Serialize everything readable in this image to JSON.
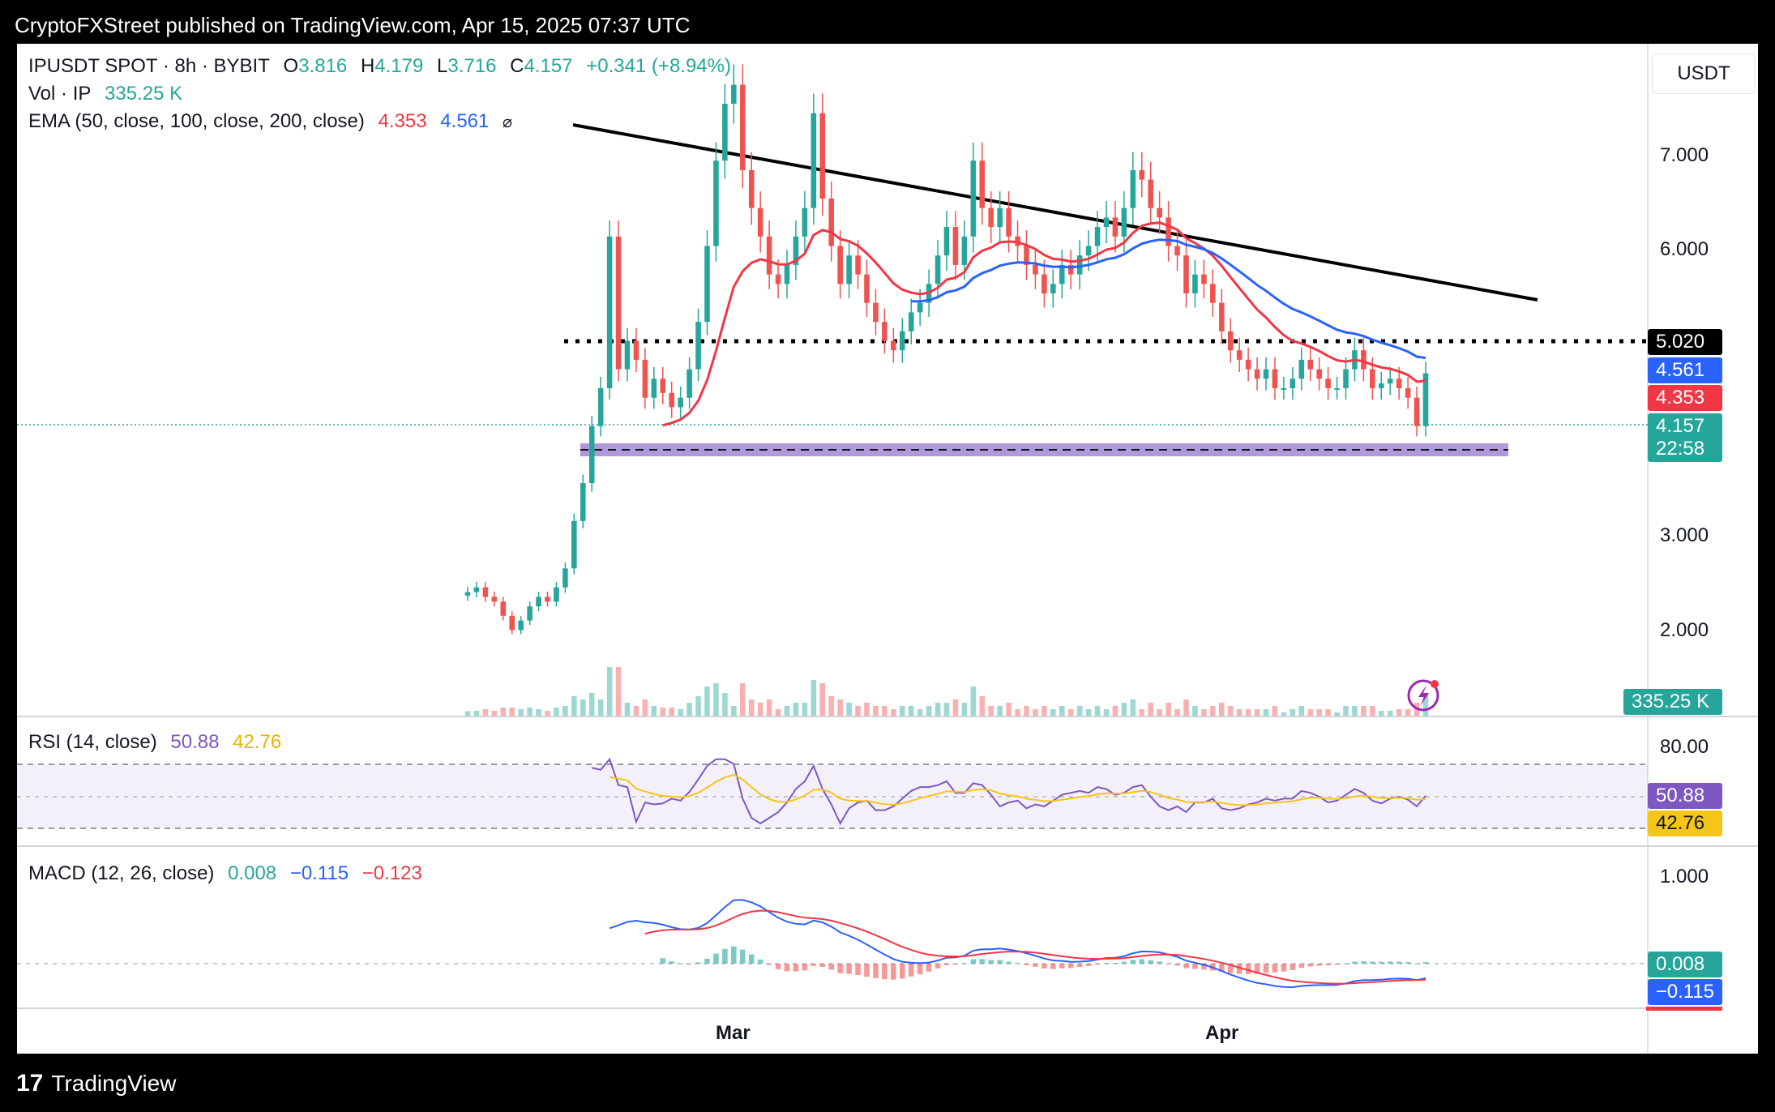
{
  "header": {
    "publisher": "CryptoFXStreet published on TradingView.com, Apr 15, 2025 07:37 UTC"
  },
  "footer": {
    "brand": "TradingView"
  },
  "legend": {
    "symbol": "IPUSDT SPOT · 8h · BYBIT",
    "o_label": "O",
    "o_value": "3.816",
    "h_label": "H",
    "h_value": "4.179",
    "l_label": "L",
    "l_value": "3.716",
    "c_label": "C",
    "c_value": "4.157",
    "change": "+0.341 (+8.94%)",
    "vol_label": "Vol · IP",
    "vol_value": "335.25 K",
    "ema_label": "EMA (50, close, 100, close, 200, close)",
    "ema50": "4.353",
    "ema100": "4.561",
    "ema_extra": "⌀"
  },
  "rsi_legend": {
    "label": "RSI (14, close)",
    "rsi": "50.88",
    "ma": "42.76"
  },
  "macd_legend": {
    "label": "MACD (12, 26, close)",
    "hist": "0.008",
    "macd": "−0.115",
    "signal": "−0.123"
  },
  "axis": {
    "currency_button": "USDT",
    "price_ticks": [
      "7.000",
      "6.000",
      "2.000",
      "3.000"
    ],
    "rsi_tick": "80.00",
    "macd_tick": "1.000",
    "x_ticks": [
      "Mar",
      "Apr"
    ]
  },
  "badges": {
    "level": "5.020",
    "ema100": "4.561",
    "ema50": "4.353",
    "price": "4.157",
    "countdown": "22:58",
    "volume": "335.25 K",
    "rsi": "50.88",
    "rsi_ma": "42.76",
    "macd_hist": "0.008",
    "macd": "−0.115"
  },
  "colors": {
    "up": "#26a69a",
    "down": "#ef5350",
    "ema50": "#f23645",
    "ema100": "#2962ff",
    "rsi": "#7e57c2",
    "rsi_ma": "#f5c518",
    "macd": "#2962ff",
    "signal": "#f23645",
    "support_band": "#9575cd"
  },
  "chart_data": {
    "type": "candlestick",
    "interval": "8h",
    "x_range": [
      "2025-02-13",
      "2025-04-15"
    ],
    "price_ylim": [
      1.0,
      7.6
    ],
    "closes": [
      1.85,
      1.9,
      1.8,
      1.75,
      1.6,
      1.45,
      1.55,
      1.7,
      1.8,
      1.75,
      1.9,
      2.1,
      2.6,
      3.0,
      3.6,
      4.0,
      5.6,
      4.2,
      4.5,
      4.3,
      3.9,
      4.1,
      3.95,
      3.8,
      3.9,
      4.2,
      4.7,
      5.5,
      6.4,
      7.0,
      7.2,
      6.3,
      5.9,
      5.6,
      5.2,
      5.1,
      5.3,
      5.6,
      5.9,
      6.9,
      6.0,
      5.5,
      5.1,
      5.4,
      5.2,
      4.9,
      4.7,
      4.5,
      4.4,
      4.6,
      4.8,
      4.9,
      5.1,
      5.4,
      5.7,
      5.3,
      5.6,
      6.4,
      5.9,
      5.7,
      5.9,
      5.6,
      5.5,
      5.3,
      5.2,
      5.0,
      5.1,
      5.3,
      5.2,
      5.4,
      5.5,
      5.7,
      5.8,
      5.6,
      5.9,
      6.3,
      6.2,
      5.9,
      5.8,
      5.5,
      5.4,
      5.0,
      5.2,
      5.1,
      4.9,
      4.6,
      4.4,
      4.3,
      4.2,
      4.1,
      4.2,
      4.0,
      4.0,
      4.1,
      4.3,
      4.2,
      4.1,
      4.0,
      4.0,
      4.2,
      4.4,
      4.2,
      4.0,
      4.05,
      4.1,
      4.0,
      3.9,
      3.6,
      4.157
    ],
    "ema50": {
      "name": "EMA 50",
      "last": 4.353
    },
    "ema100": {
      "name": "EMA 100",
      "last": 4.561
    },
    "resistance_level": 5.02,
    "support_zone": [
      3.8,
      3.95
    ],
    "trendline": [
      [
        7.35,
        "start"
      ],
      [
        5.55,
        "end"
      ]
    ],
    "volume_last": "335.25K",
    "rsi": {
      "period": 14,
      "value": 50.88,
      "ma": 42.76,
      "upper": 70,
      "lower": 30
    },
    "macd": {
      "fast": 12,
      "slow": 26,
      "hist": 0.008,
      "macd": -0.115,
      "signal": -0.123
    }
  }
}
